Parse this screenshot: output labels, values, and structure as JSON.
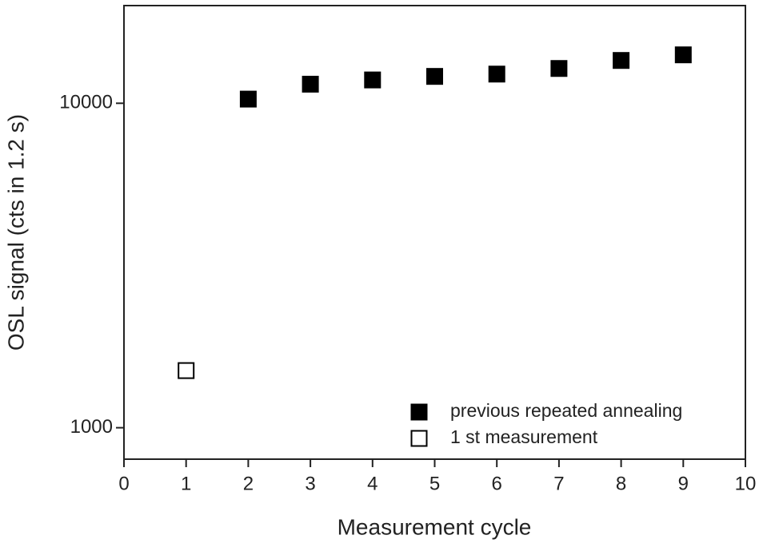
{
  "chart_data": {
    "type": "scatter",
    "xlabel": "Measurement cycle",
    "ylabel": "OSL signal (cts in 1.2 s)",
    "xlim": [
      0,
      10
    ],
    "xticks": [
      0,
      1,
      2,
      3,
      4,
      5,
      6,
      7,
      8,
      9,
      10
    ],
    "ylim": [
      800,
      20000
    ],
    "yticks": [
      1000,
      10000
    ],
    "log_y": true,
    "legend": "lower right",
    "series": [
      {
        "name": "previous repeated annealing",
        "color": "#000000",
        "filled": true,
        "x": [
          2,
          3,
          4,
          5,
          6,
          7,
          8,
          9
        ],
        "values": [
          10300,
          11450,
          11800,
          12100,
          12300,
          12800,
          13550,
          14100
        ]
      },
      {
        "name": "1 st measurement",
        "color": "#000000",
        "filled": false,
        "x": [
          1
        ],
        "values": [
          1500
        ]
      }
    ]
  }
}
